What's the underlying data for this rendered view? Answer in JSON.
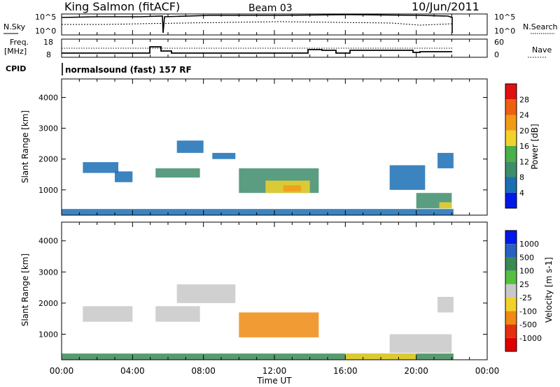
{
  "header": {
    "station": "King Salmon (fitACF)",
    "beam": "Beam 03",
    "date": "10/Jun/2011"
  },
  "sky_panel": {
    "left_label": "N.Sky",
    "right_label": "N.Search",
    "left_ticks": [
      "10^5",
      "10^0"
    ],
    "right_ticks": [
      "10^5",
      "10^0"
    ]
  },
  "freq_panel": {
    "left_label_line1": "Freq.",
    "left_label_line2": "[MHz]",
    "right_label": "Nave",
    "left_ticks": [
      "18",
      "8"
    ],
    "right_ticks": [
      "60",
      "0"
    ]
  },
  "cpid": {
    "label": "CPID",
    "text": "normalsound (fast) 157 RF"
  },
  "time_axis": {
    "label": "Time UT",
    "ticks": [
      "00:00",
      "04:00",
      "08:00",
      "12:00",
      "16:00",
      "20:00",
      "00:00"
    ]
  },
  "colors": {
    "power_scale": [
      "#0018e8",
      "#1a6fb4",
      "#3e8c6a",
      "#49b04a",
      "#f2d22a",
      "#f29a18",
      "#ee6010",
      "#e01010"
    ],
    "velocity_scale": [
      "#0018e8",
      "#2a60c0",
      "#3a8a55",
      "#55c040",
      "#c8c8c8",
      "#f2d22a",
      "#ef8a12",
      "#e53010",
      "#e00000"
    ]
  },
  "chart_data": [
    {
      "type": "line",
      "panel": "sky-search-noise",
      "x_unit": "hours UT",
      "xlim": [
        0,
        24
      ],
      "series": [
        {
          "name": "N.Sky",
          "x": [
            0,
            2,
            4,
            5.5,
            5.7,
            8,
            12,
            16,
            20,
            22
          ],
          "y": [
            5000,
            6000,
            7000,
            8000,
            2,
            20000,
            30000,
            25000,
            15000,
            20000
          ]
        },
        {
          "name": "N.Search",
          "x": [
            0,
            4,
            8,
            12,
            16,
            20,
            22
          ],
          "y": [
            300,
            400,
            600,
            700,
            500,
            300,
            400
          ]
        }
      ]
    },
    {
      "type": "line",
      "panel": "frequency-nave",
      "x_unit": "hours UT",
      "xlim": [
        0,
        24
      ],
      "series": [
        {
          "name": "Freq.",
          "x": [
            0,
            4.5,
            5.2,
            5.6,
            8.2,
            12.4,
            13.2,
            14.5,
            16.4,
            20,
            22
          ],
          "y": [
            10.2,
            10.2,
            13,
            11.5,
            11.2,
            12.4,
            11,
            11.8,
            11.5,
            10.5,
            10.8
          ]
        },
        {
          "name": "Nave",
          "x": [
            0,
            22
          ],
          "y": [
            33,
            33
          ]
        }
      ]
    },
    {
      "type": "heatmap",
      "panel": "power",
      "title": "",
      "xlabel": "Time UT",
      "ylabel": "Slant Range [km]",
      "ylim": [
        180,
        4600
      ],
      "y_ticks": [
        1000,
        2000,
        3000,
        4000
      ],
      "colorbar_label": "Power [dB]",
      "colorbar_ticks": [
        4,
        8,
        12,
        16,
        20,
        24,
        28
      ],
      "regions": [
        {
          "t0": 0,
          "t1": 22.1,
          "r0": 180,
          "r1": 380,
          "value": 6
        },
        {
          "t0": 1.2,
          "t1": 3.2,
          "r0": 1550,
          "r1": 1900,
          "value": 7
        },
        {
          "t0": 3.0,
          "t1": 4.0,
          "r0": 1250,
          "r1": 1600,
          "value": 6
        },
        {
          "t0": 5.3,
          "t1": 7.8,
          "r0": 1400,
          "r1": 1700,
          "value": 8
        },
        {
          "t0": 6.5,
          "t1": 8.0,
          "r0": 2200,
          "r1": 2600,
          "value": 6
        },
        {
          "t0": 8.5,
          "t1": 9.8,
          "r0": 2000,
          "r1": 2200,
          "value": 7
        },
        {
          "t0": 10.0,
          "t1": 14.5,
          "r0": 900,
          "r1": 1700,
          "value": 10
        },
        {
          "t0": 11.5,
          "t1": 14.0,
          "r0": 900,
          "r1": 1300,
          "value": 16
        },
        {
          "t0": 12.5,
          "t1": 13.5,
          "r0": 950,
          "r1": 1150,
          "value": 20
        },
        {
          "t0": 18.5,
          "t1": 20.5,
          "r0": 1000,
          "r1": 1800,
          "value": 6
        },
        {
          "t0": 20.0,
          "t1": 22.0,
          "r0": 400,
          "r1": 900,
          "value": 10
        },
        {
          "t0": 21.3,
          "t1": 22.0,
          "r0": 400,
          "r1": 600,
          "value": 18
        },
        {
          "t0": 21.2,
          "t1": 22.1,
          "r0": 1700,
          "r1": 2200,
          "value": 6
        }
      ]
    },
    {
      "type": "heatmap",
      "panel": "velocity",
      "title": "",
      "xlabel": "Time UT",
      "ylabel": "Slant Range [km]",
      "ylim": [
        180,
        4600
      ],
      "y_ticks": [
        1000,
        2000,
        3000,
        4000
      ],
      "colorbar_label": "Velocity [m s-1]",
      "colorbar_ticks": [
        1000,
        500,
        100,
        25,
        -25,
        -100,
        -500,
        -1000
      ],
      "regions": [
        {
          "t0": 0,
          "t1": 22.1,
          "r0": 180,
          "r1": 380,
          "value": 60
        },
        {
          "t0": 1.2,
          "t1": 4.0,
          "r0": 1400,
          "r1": 1900,
          "value": 0
        },
        {
          "t0": 5.3,
          "t1": 7.8,
          "r0": 1400,
          "r1": 1900,
          "value": 0
        },
        {
          "t0": 6.5,
          "t1": 9.8,
          "r0": 2000,
          "r1": 2600,
          "value": 0
        },
        {
          "t0": 10.0,
          "t1": 14.5,
          "r0": 900,
          "r1": 1700,
          "value": -200
        },
        {
          "t0": 18.5,
          "t1": 22.0,
          "r0": 400,
          "r1": 1000,
          "value": 0
        },
        {
          "t0": 16.0,
          "t1": 20.0,
          "r0": 180,
          "r1": 380,
          "value": -60
        },
        {
          "t0": 21.2,
          "t1": 22.1,
          "r0": 1700,
          "r1": 2200,
          "value": 0
        }
      ]
    }
  ]
}
